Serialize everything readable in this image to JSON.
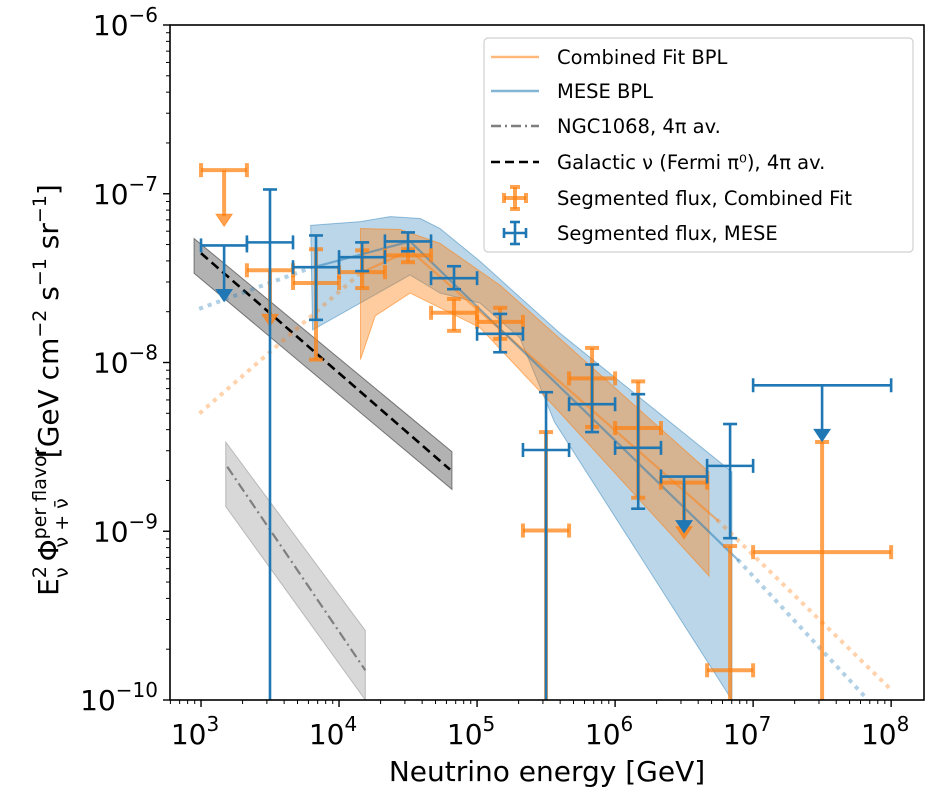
{
  "chart_data": {
    "type": "scatter",
    "xlabel": "Neutrino energy [GeV]",
    "ylabel": {
      "base": "E",
      "base_sup": "2",
      "base_sub": "ν",
      "phi": "Φ",
      "phi_sup": "per flavor",
      "phi_sub": "ν + ν̄",
      "units": "[GeV cm",
      "u1": "−2",
      "u2": " s",
      "u3": "−1",
      "u4": " sr",
      "u5": "−1",
      "u6": "]"
    },
    "xscale": "log",
    "yscale": "log",
    "xlim": [
      596,
      173000000.0
    ],
    "ylim": [
      1e-10,
      1e-06
    ],
    "x_ticks": [
      {
        "value": 1000.0,
        "base": "10",
        "exp": "3"
      },
      {
        "value": 10000.0,
        "base": "10",
        "exp": "4"
      },
      {
        "value": 100000.0,
        "base": "10",
        "exp": "5"
      },
      {
        "value": 1000000.0,
        "base": "10",
        "exp": "6"
      },
      {
        "value": 10000000.0,
        "base": "10",
        "exp": "7"
      },
      {
        "value": 100000000.0,
        "base": "10",
        "exp": "8"
      }
    ],
    "y_ticks": [
      {
        "value": 1e-06,
        "base": "10",
        "exp": "−6"
      },
      {
        "value": 1e-07,
        "base": "10",
        "exp": "−7"
      },
      {
        "value": 1e-08,
        "base": "10",
        "exp": "−8"
      },
      {
        "value": 1e-09,
        "base": "10",
        "exp": "−9"
      },
      {
        "value": 1e-10,
        "base": "10",
        "exp": "−10"
      }
    ],
    "grid": false,
    "legend_placement": "top-right",
    "legend": [
      {
        "label": "Combined Fit BPL",
        "kind": "line",
        "color": "#ff7f0e"
      },
      {
        "label": "MESE BPL",
        "kind": "line",
        "color": "#1f77b4"
      },
      {
        "label": "NGC1068, 4π av.",
        "kind": "dashdot",
        "color": "#7f7f7f"
      },
      {
        "label": "Galactic ν (Fermi π⁰), 4π av.",
        "kind": "dashed",
        "color": "#000000"
      },
      {
        "label": "Segmented flux, Combined Fit",
        "kind": "errorbar",
        "color": "#ff7f0e"
      },
      {
        "label": "Segmented flux, MESE",
        "kind": "errorbar",
        "color": "#1f77b4"
      }
    ],
    "colors": {
      "combined": "#ff7f0e",
      "mese": "#1f77b4",
      "ngc": "#7f7f7f",
      "galactic": "#000000"
    },
    "segmented_mese": [
      {
        "x": 1470.0,
        "xlo": 1000.0,
        "xhi": 2150.0,
        "y": 4.94e-08,
        "upper_limit": true
      },
      {
        "x": 3160.0,
        "xlo": 2150.0,
        "xhi": 4640.0,
        "y": 5.15e-08,
        "ylo": 1e-10,
        "yhi": 1.06e-07
      },
      {
        "x": 6810.0,
        "xlo": 4640.0,
        "xhi": 10000.0,
        "y": 3.67e-08,
        "ylo": 1.79e-08,
        "yhi": 5.66e-08
      },
      {
        "x": 14700.0,
        "xlo": 10000.0,
        "xhi": 21500.0,
        "y": 4.21e-08,
        "ylo": 3.48e-08,
        "yhi": 5.15e-08
      },
      {
        "x": 31600.0,
        "xlo": 21500.0,
        "xhi": 46400.0,
        "y": 5.22e-08,
        "ylo": 4.56e-08,
        "yhi": 5.9e-08
      },
      {
        "x": 68100.0,
        "xlo": 46400.0,
        "xhi": 100000.0,
        "y": 3.16e-08,
        "ylo": 2.72e-08,
        "yhi": 3.72e-08
      },
      {
        "x": 147000.0,
        "xlo": 100000.0,
        "xhi": 215000.0,
        "y": 1.48e-08,
        "ylo": 1.15e-08,
        "yhi": 1.94e-08
      },
      {
        "x": 316000.0,
        "xlo": 215000.0,
        "xhi": 464000.0,
        "y": 3.03e-09,
        "ylo": 1e-10,
        "yhi": 6.67e-09
      },
      {
        "x": 681000.0,
        "xlo": 464000.0,
        "xhi": 1000000.0,
        "y": 5.66e-09,
        "ylo": 3.87e-09,
        "yhi": 9.73e-09
      },
      {
        "x": 1470000.0,
        "xlo": 1000000.0,
        "xhi": 2150000.0,
        "y": 3.12e-09,
        "ylo": 1.36e-09,
        "yhi": 6.49e-09
      },
      {
        "x": 3160000.0,
        "xlo": 2150000.0,
        "xhi": 4640000.0,
        "y": 2.11e-09,
        "upper_limit": true
      },
      {
        "x": 6810000.0,
        "xlo": 4640000.0,
        "xhi": 10000000.0,
        "y": 2.44e-09,
        "ylo": 9.1e-10,
        "yhi": 4.32e-09
      },
      {
        "x": 31600000.0,
        "xlo": 10000000.0,
        "xhi": 100000000.0,
        "y": 7.33e-09,
        "upper_limit": true
      }
    ],
    "segmented_combined": [
      {
        "x": 1470.0,
        "xlo": 1000.0,
        "xhi": 2150.0,
        "y": 1.38e-07,
        "upper_limit": true
      },
      {
        "x": 3160.0,
        "xlo": 2150.0,
        "xhi": 4640.0,
        "y": 3.52e-08,
        "upper_limit": true
      },
      {
        "x": 6810.0,
        "xlo": 4640.0,
        "xhi": 10000.0,
        "y": 2.96e-08,
        "ylo": 1.04e-08,
        "yhi": 4.69e-08
      },
      {
        "x": 14700.0,
        "xlo": 10000.0,
        "xhi": 21500.0,
        "y": 3.43e-08,
        "ylo": 2.76e-08,
        "yhi": 4.62e-08
      },
      {
        "x": 31600.0,
        "xlo": 21500.0,
        "xhi": 46400.0,
        "y": 4.31e-08,
        "ylo": 3.93e-08,
        "yhi": 4.69e-08
      },
      {
        "x": 68100.0,
        "xlo": 46400.0,
        "xhi": 100000.0,
        "y": 1.97e-08,
        "ylo": 1.54e-08,
        "yhi": 2.38e-08
      },
      {
        "x": 147000.0,
        "xlo": 100000.0,
        "xhi": 215000.0,
        "y": 1.74e-08,
        "ylo": 1.38e-08,
        "yhi": 2.11e-08
      },
      {
        "x": 316000.0,
        "xlo": 215000.0,
        "xhi": 464000.0,
        "y": 1.01e-09,
        "ylo": 1e-10,
        "yhi": 3.87e-09
      },
      {
        "x": 681000.0,
        "xlo": 464000.0,
        "xhi": 1000000.0,
        "y": 8.05e-09,
        "ylo": 4.15e-09,
        "yhi": 1.22e-08
      },
      {
        "x": 1470000.0,
        "xlo": 1000000.0,
        "xhi": 2150000.0,
        "y": 4.09e-09,
        "ylo": 1.58e-09,
        "yhi": 7.73e-09
      },
      {
        "x": 3160000.0,
        "xlo": 2150000.0,
        "xhi": 4640000.0,
        "y": 1.94e-09,
        "upper_limit": true
      },
      {
        "x": 6810000.0,
        "xlo": 4640000.0,
        "xhi": 10000000.0,
        "y": 1.5e-10,
        "ylo": 1e-10,
        "yhi": 8.17e-10
      },
      {
        "x": 31600000.0,
        "xlo": 10000000.0,
        "xhi": 100000000.0,
        "y": 7.52e-10,
        "ylo": 1e-10,
        "yhi": 3.38e-09
      }
    ],
    "combined_bpl": {
      "solid": [
        [
          14300.0,
          3.39e-08
        ],
        [
          32700.0,
          4.62e-08
        ],
        [
          5600000.0,
          1.15e-09
        ]
      ],
      "dotted_low": [
        [
          1000.0,
          5.08e-09
        ],
        [
          14300.0,
          3.39e-08
        ]
      ],
      "dotted_high": [
        [
          5600000.0,
          1.15e-09
        ],
        [
          100000000.0,
          1.15e-10
        ]
      ],
      "band_upper": [
        [
          14300.0,
          6.22e-08
        ],
        [
          27700.0,
          6.14e-08
        ],
        [
          53900.0,
          5.08e-08
        ],
        [
          146000.0,
          2.88e-08
        ],
        [
          4790000.0,
          2.25e-09
        ]
      ],
      "band_lower": [
        [
          4790000.0,
          5.43e-10
        ],
        [
          395000.0,
          5.08e-09
        ],
        [
          105000.0,
          1.61e-08
        ],
        [
          32700.0,
          2.58e-08
        ],
        [
          18300.0,
          1.89e-08
        ],
        [
          14300.0,
          1.04e-08
        ]
      ]
    },
    "mese_bpl": {
      "solid": [
        [
          6200.0,
          3.63e-08
        ],
        [
          32700.0,
          5.22e-08
        ],
        [
          7900000.0,
          6.67e-10
        ]
      ],
      "dotted_low": [
        [
          1000.0,
          2.1e-08
        ],
        [
          6200.0,
          3.63e-08
        ]
      ],
      "dotted_high": [
        [
          7900000.0,
          6.67e-10
        ],
        [
          68000000.0,
          1e-10
        ]
      ],
      "band_upper": [
        [
          6230.0,
          6.49e-08
        ],
        [
          14300.0,
          6.84e-08
        ],
        [
          23500.0,
          7.32e-08
        ],
        [
          38700.0,
          7.13e-08
        ],
        [
          53900.0,
          6.22e-08
        ],
        [
          105000.0,
          3.98e-08
        ],
        [
          395000.0,
          1.5e-08
        ],
        [
          7020000.0,
          2.25e-09
        ]
      ],
      "band_lower": [
        [
          7020000.0,
          1e-10
        ],
        [
          364000.0,
          4.44e-09
        ],
        [
          204000.0,
          1.4e-08
        ],
        [
          105000.0,
          2.25e-08
        ],
        [
          53900.0,
          2.58e-08
        ],
        [
          32700.0,
          3.3e-08
        ],
        [
          6430.0,
          1.56e-08
        ]
      ]
    },
    "galactic": {
      "line": [
        [
          1000.0,
          4.44e-08
        ],
        [
          63700.0,
          2.32e-09
        ]
      ],
      "band_upper": [
        [
          890,
          5.43e-08
        ],
        [
          65800.0,
          2.96e-09
        ]
      ],
      "band_lower": [
        [
          65800.0,
          1.77e-09
        ],
        [
          890,
          3.38e-08
        ]
      ]
    },
    "ngc1068": {
      "line": [
        [
          1550.0,
          2.41e-09
        ],
        [
          15500.0,
          1.5e-10
        ]
      ],
      "band_upper": [
        [
          1510.0,
          3.38e-09
        ],
        [
          15500.0,
          2.58e-10
        ]
      ],
      "band_lower": [
        [
          15500.0,
          1e-10
        ],
        [
          1510.0,
          1.4e-09
        ]
      ]
    }
  }
}
